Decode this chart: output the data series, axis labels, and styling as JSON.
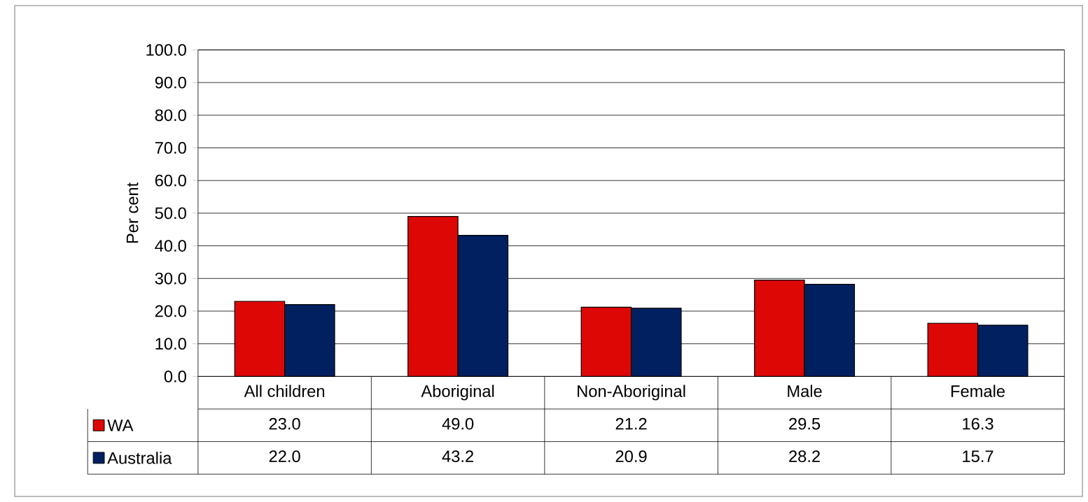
{
  "chart_data": {
    "type": "bar",
    "ylabel": "Per cent",
    "categories": [
      "All children",
      "Aboriginal",
      "Non-Aboriginal",
      "Male",
      "Female"
    ],
    "series": [
      {
        "name": "WA",
        "color": "#dd0806",
        "values": [
          23.0,
          49.0,
          21.2,
          29.5,
          16.3
        ],
        "value_labels": [
          "23.0",
          "49.0",
          "21.2",
          "29.5",
          "16.3"
        ]
      },
      {
        "name": "Australia",
        "color": "#002060",
        "values": [
          22.0,
          43.2,
          20.9,
          28.2,
          15.7
        ],
        "value_labels": [
          "22.0",
          "43.2",
          "20.9",
          "28.2",
          "15.7"
        ]
      }
    ],
    "ylim": [
      0,
      100
    ],
    "yticks": [
      {
        "value": 0,
        "label": "0.0"
      },
      {
        "value": 10,
        "label": "10.0"
      },
      {
        "value": 20,
        "label": "20.0"
      },
      {
        "value": 30,
        "label": "30.0"
      },
      {
        "value": 40,
        "label": "40.0"
      },
      {
        "value": 50,
        "label": "50.0"
      },
      {
        "value": 60,
        "label": "60.0"
      },
      {
        "value": 70,
        "label": "70.0"
      },
      {
        "value": 80,
        "label": "80.0"
      },
      {
        "value": 90,
        "label": "90.0"
      },
      {
        "value": 100,
        "label": "100.0"
      }
    ],
    "grid": "y",
    "legend": "bottom left"
  }
}
